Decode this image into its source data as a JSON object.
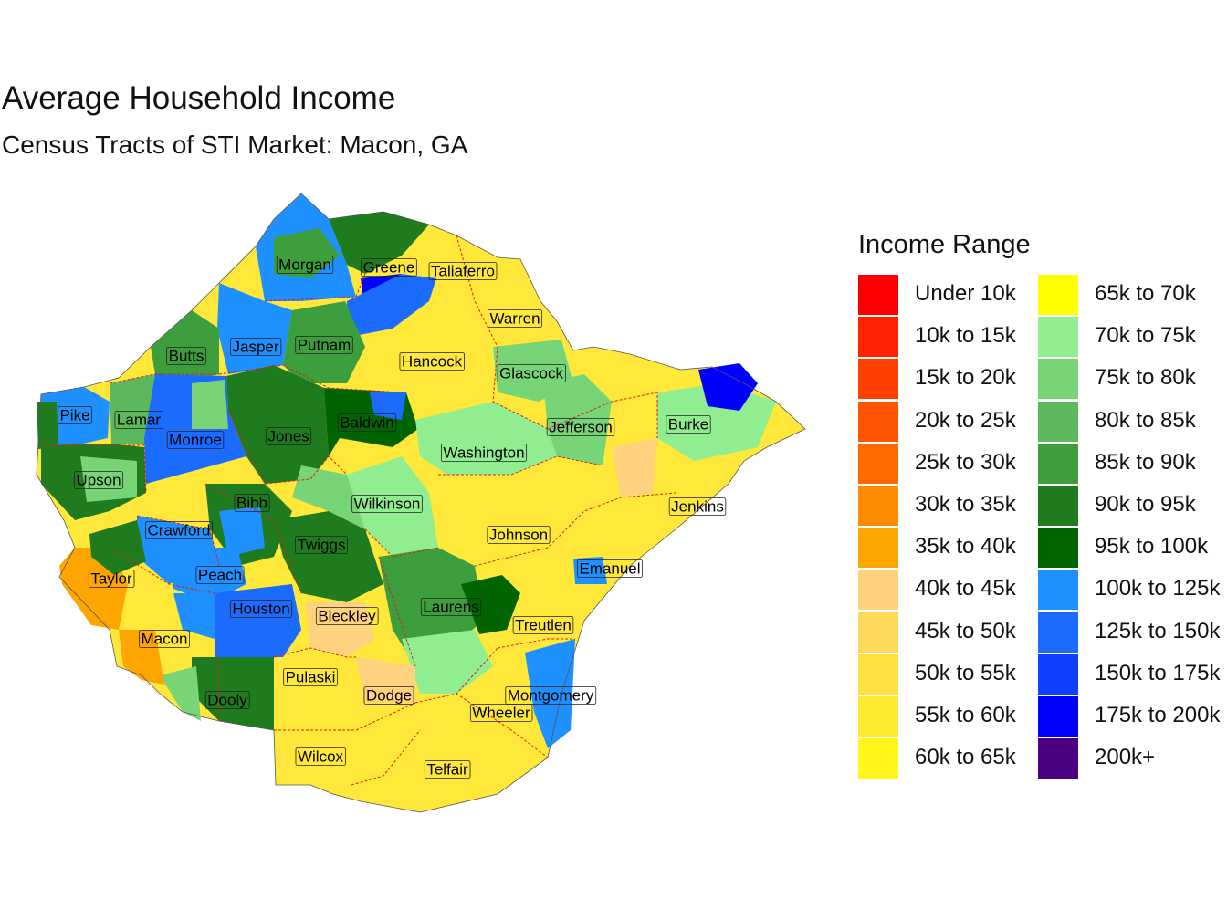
{
  "title": "Average Household Income",
  "subtitle": "Census Tracts of STI Market: Macon, GA",
  "legend": {
    "title": "Income Range",
    "items": [
      {
        "label": "Under 10k",
        "color": "#FF0000"
      },
      {
        "label": "10k to 15k",
        "color": "#FF2200"
      },
      {
        "label": "15k to 20k",
        "color": "#FF4000"
      },
      {
        "label": "20k to 25k",
        "color": "#FF5500"
      },
      {
        "label": "25k to 30k",
        "color": "#FF6A00"
      },
      {
        "label": "30k to 35k",
        "color": "#FF8C00"
      },
      {
        "label": "35k to 40k",
        "color": "#FFA500"
      },
      {
        "label": "40k to 45k",
        "color": "#FFD27F"
      },
      {
        "label": "45k to 50k",
        "color": "#FFDA5A"
      },
      {
        "label": "50k to 55k",
        "color": "#FFE040"
      },
      {
        "label": "55k to 60k",
        "color": "#FFEA30"
      },
      {
        "label": "60k to 65k",
        "color": "#FFF51A"
      },
      {
        "label": "65k to 70k",
        "color": "#FFFF00"
      },
      {
        "label": "70k to 75k",
        "color": "#90EE90"
      },
      {
        "label": "75k to 80k",
        "color": "#77D477"
      },
      {
        "label": "80k to 85k",
        "color": "#5CB85C"
      },
      {
        "label": "85k to 90k",
        "color": "#3C9E3C"
      },
      {
        "label": "90k to 95k",
        "color": "#1E7B1E"
      },
      {
        "label": "95k to 100k",
        "color": "#006400"
      },
      {
        "label": "100k to 125k",
        "color": "#1E90FF"
      },
      {
        "label": "125k to 150k",
        "color": "#1C6BFF"
      },
      {
        "label": "150k to 175k",
        "color": "#1040FF"
      },
      {
        "label": "175k to 200k",
        "color": "#0000FF"
      },
      {
        "label": "200k+",
        "color": "#4B0082"
      }
    ]
  },
  "counties": [
    {
      "name": "Morgan"
    },
    {
      "name": "Greene"
    },
    {
      "name": "Taliaferro"
    },
    {
      "name": "Warren"
    },
    {
      "name": "Butts"
    },
    {
      "name": "Jasper"
    },
    {
      "name": "Putnam"
    },
    {
      "name": "Hancock"
    },
    {
      "name": "Glascock"
    },
    {
      "name": "Pike"
    },
    {
      "name": "Lamar"
    },
    {
      "name": "Baldwin"
    },
    {
      "name": "Jefferson"
    },
    {
      "name": "Burke"
    },
    {
      "name": "Monroe"
    },
    {
      "name": "Jones"
    },
    {
      "name": "Washington"
    },
    {
      "name": "Upson"
    },
    {
      "name": "Bibb"
    },
    {
      "name": "Wilkinson"
    },
    {
      "name": "Jenkins"
    },
    {
      "name": "Crawford"
    },
    {
      "name": "Johnson"
    },
    {
      "name": "Twiggs"
    },
    {
      "name": "Emanuel"
    },
    {
      "name": "Taylor"
    },
    {
      "name": "Peach"
    },
    {
      "name": "Laurens"
    },
    {
      "name": "Houston"
    },
    {
      "name": "Bleckley"
    },
    {
      "name": "Treutlen"
    },
    {
      "name": "Macon"
    },
    {
      "name": "Pulaski"
    },
    {
      "name": "Montgomery"
    },
    {
      "name": "Dodge"
    },
    {
      "name": "Dooly"
    },
    {
      "name": "Wheeler"
    },
    {
      "name": "Wilcox"
    },
    {
      "name": "Telfair"
    }
  ]
}
